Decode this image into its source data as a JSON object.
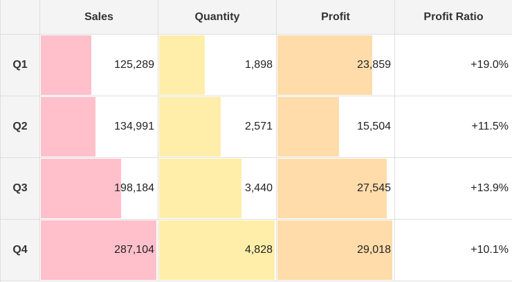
{
  "chart_data": {
    "type": "table",
    "row_labels": [
      "Q1",
      "Q2",
      "Q3",
      "Q4"
    ],
    "columns": [
      {
        "key": "sales",
        "header": "Sales",
        "bar_color": "#ffc0cb",
        "bar_max": 290000,
        "values": [
          125289,
          134991,
          198184,
          287104
        ],
        "display": [
          "125,289",
          "134,991",
          "198,184",
          "287,104"
        ]
      },
      {
        "key": "quantity",
        "header": "Quantity",
        "bar_color": "#ffeeaa",
        "bar_max": 4900,
        "values": [
          1898,
          2571,
          3440,
          4828
        ],
        "display": [
          "1,898",
          "2,571",
          "3,440",
          "4,828"
        ]
      },
      {
        "key": "profit",
        "header": "Profit",
        "bar_color": "#ffdcaa",
        "bar_max": 29500,
        "values": [
          23859,
          15504,
          27545,
          29018
        ],
        "display": [
          "23,859",
          "15,504",
          "27,545",
          "29,018"
        ]
      },
      {
        "key": "profit_ratio",
        "header": "Profit Ratio",
        "bar_color": null,
        "values": [
          19.0,
          11.5,
          13.9,
          10.1
        ],
        "display": [
          "+19.0%",
          "+11.5%",
          "+13.9%",
          "+10.1%"
        ]
      }
    ]
  }
}
